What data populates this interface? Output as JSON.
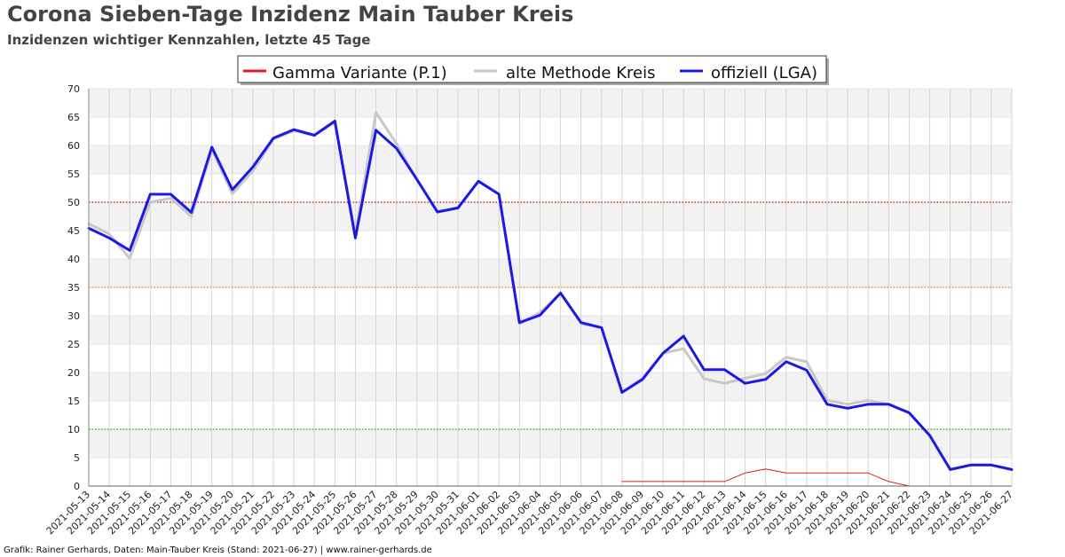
{
  "title": "Corona Sieben-Tage Inzidenz Main Tauber Kreis",
  "subtitle": "Inzidenzen wichtiger Kennzahlen, letzte 45 Tage",
  "footer": "Grafik: Rainer Gerhards, Daten: Main-Tauber Kreis (Stand: 2021-06-27) | www.rainer-gerhards.de",
  "chart_data": {
    "type": "line",
    "title": "Corona Sieben-Tage Inzidenz Main Tauber Kreis",
    "subtitle": "Inzidenzen wichtiger Kennzahlen, letzte 45 Tage",
    "xlabel": "",
    "ylabel": "",
    "ylim": [
      0,
      70
    ],
    "yticks": [
      0,
      5,
      10,
      15,
      20,
      25,
      30,
      35,
      40,
      45,
      50,
      55,
      60,
      65,
      70
    ],
    "grid": true,
    "legend_position": "top-center",
    "categories": [
      "2021-05-13",
      "2021-05-14",
      "2021-05-15",
      "2021-05-16",
      "2021-05-17",
      "2021-05-18",
      "2021-05-19",
      "2021-05-20",
      "2021-05-21",
      "2021-05-22",
      "2021-05-23",
      "2021-05-24",
      "2021-05-25",
      "2021-05-26",
      "2021-05-27",
      "2021-05-28",
      "2021-05-29",
      "2021-05-30",
      "2021-05-31",
      "2021-06-01",
      "2021-06-02",
      "2021-06-03",
      "2021-06-04",
      "2021-06-05",
      "2021-06-06",
      "2021-06-07",
      "2021-06-08",
      "2021-06-09",
      "2021-06-10",
      "2021-06-11",
      "2021-06-12",
      "2021-06-13",
      "2021-06-14",
      "2021-06-15",
      "2021-06-16",
      "2021-06-17",
      "2021-06-18",
      "2021-06-19",
      "2021-06-20",
      "2021-06-21",
      "2021-06-22",
      "2021-06-23",
      "2021-06-24",
      "2021-06-25",
      "2021-06-26",
      "2021-06-27"
    ],
    "series": [
      {
        "name": "Gamma Variante (P.1)",
        "color": "#e41a1c",
        "width": 1,
        "values": [
          null,
          null,
          null,
          null,
          null,
          null,
          null,
          null,
          null,
          null,
          null,
          null,
          null,
          null,
          null,
          null,
          null,
          null,
          null,
          null,
          null,
          null,
          null,
          null,
          null,
          null,
          0.8,
          0.8,
          0.8,
          0.8,
          0.8,
          0.8,
          2.3,
          3.0,
          2.3,
          2.3,
          2.3,
          2.3,
          2.3,
          0.8,
          0,
          null,
          null,
          null,
          null,
          null
        ]
      },
      {
        "name": "alte Methode Kreis",
        "color": "#c8c8c8",
        "width": 3,
        "values": [
          46.2,
          44.4,
          40.1,
          50.0,
          50.7,
          47.5,
          59.3,
          51.5,
          55.5,
          61.1,
          62.6,
          61.8,
          64.1,
          44.4,
          65.8,
          60.3,
          54.0,
          48.2,
          49.0,
          53.7,
          51.4,
          28.6,
          30.6,
          34.0,
          28.6,
          27.9,
          16.5,
          19.0,
          23.4,
          24.2,
          18.9,
          18.1,
          19.0,
          19.8,
          22.7,
          21.9,
          15.1,
          14.4,
          15.1,
          14.4,
          12.9,
          8.9,
          2.9,
          3.7,
          3.7,
          2.9
        ]
      },
      {
        "name": "offiziell (LGA)",
        "color": "#1a1ae6",
        "width": 3,
        "values": [
          45.4,
          43.7,
          41.5,
          51.4,
          51.4,
          48.2,
          59.7,
          52.2,
          56.2,
          61.3,
          62.8,
          61.8,
          64.3,
          43.7,
          62.7,
          59.5,
          54.0,
          48.3,
          49.0,
          53.7,
          51.4,
          28.8,
          30.1,
          34.0,
          28.8,
          27.9,
          16.5,
          18.8,
          23.4,
          26.4,
          20.5,
          20.5,
          18.1,
          18.8,
          21.9,
          20.4,
          14.4,
          13.7,
          14.4,
          14.4,
          12.9,
          8.9,
          2.9,
          3.7,
          3.7,
          2.9
        ]
      }
    ],
    "threshold_lines": [
      {
        "value": 50,
        "color": "#dd0000"
      },
      {
        "value": 35,
        "color": "#ee8800"
      },
      {
        "value": 10,
        "color": "#00bb00"
      }
    ]
  }
}
